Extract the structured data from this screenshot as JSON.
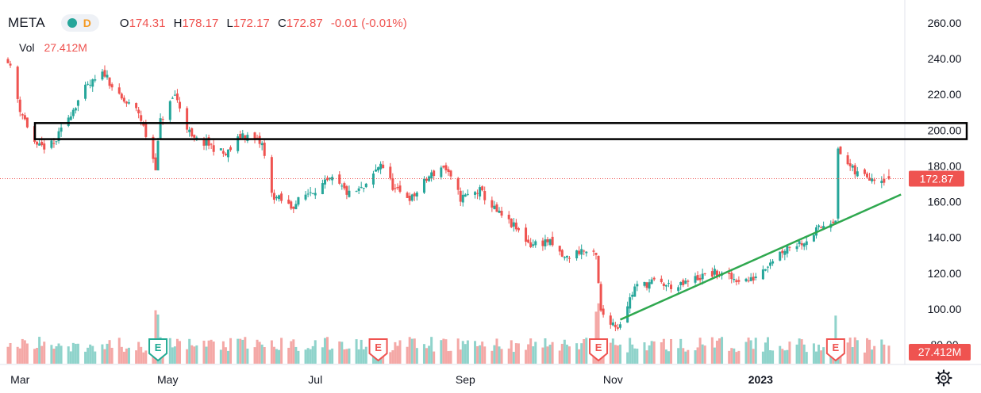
{
  "header": {
    "symbol": "META",
    "interval": "D",
    "open_label": "O",
    "open": "174.31",
    "high_label": "H",
    "high": "178.17",
    "low_label": "L",
    "low": "172.17",
    "close_label": "C",
    "close": "172.87",
    "change": "-0.01 (-0.01%)"
  },
  "volume": {
    "label": "Vol",
    "value": "27.412M"
  },
  "price_tag": "172.87",
  "volume_tag": "27.412M",
  "colors": {
    "up": "#26a69a",
    "down": "#ef5350",
    "trendline": "#2fa84f",
    "zone": "#000000",
    "text": "#131722"
  },
  "icons": {
    "settings": "gear-icon"
  },
  "chart_data": {
    "type": "candlestick",
    "symbol": "META",
    "x_tick_labels": [
      "Mar",
      "May",
      "Jul",
      "Sep",
      "Nov",
      "2023"
    ],
    "y_tick_labels": [
      "260.00",
      "240.00",
      "220.00",
      "200.00",
      "180.00",
      "160.00",
      "140.00",
      "120.00",
      "100.00",
      "80.00"
    ],
    "ylim": [
      76,
      264
    ],
    "last_price": 172.87,
    "price_series_approx": [
      [
        "2022-02-24",
        240
      ],
      [
        "2022-03-01",
        212
      ],
      [
        "2022-03-08",
        190
      ],
      [
        "2022-03-15",
        192
      ],
      [
        "2022-03-22",
        210
      ],
      [
        "2022-03-28",
        223
      ],
      [
        "2022-04-05",
        232
      ],
      [
        "2022-04-11",
        218
      ],
      [
        "2022-04-19",
        210
      ],
      [
        "2022-04-26",
        180
      ],
      [
        "2022-04-28",
        205
      ],
      [
        "2022-05-04",
        220
      ],
      [
        "2022-05-11",
        195
      ],
      [
        "2022-05-18",
        192
      ],
      [
        "2022-05-25",
        186
      ],
      [
        "2022-06-01",
        198
      ],
      [
        "2022-06-09",
        192
      ],
      [
        "2022-06-13",
        164
      ],
      [
        "2022-06-21",
        157
      ],
      [
        "2022-06-29",
        166
      ],
      [
        "2022-07-08",
        172
      ],
      [
        "2022-07-15",
        164
      ],
      [
        "2022-07-22",
        168
      ],
      [
        "2022-07-28",
        182
      ],
      [
        "2022-08-03",
        166
      ],
      [
        "2022-08-10",
        162
      ],
      [
        "2022-08-17",
        174
      ],
      [
        "2022-08-23",
        180
      ],
      [
        "2022-08-30",
        162
      ],
      [
        "2022-09-07",
        166
      ],
      [
        "2022-09-14",
        154
      ],
      [
        "2022-09-21",
        146
      ],
      [
        "2022-09-28",
        136
      ],
      [
        "2022-10-05",
        138
      ],
      [
        "2022-10-12",
        128
      ],
      [
        "2022-10-19",
        133
      ],
      [
        "2022-10-25",
        129
      ],
      [
        "2022-10-27",
        98
      ],
      [
        "2022-11-03",
        90
      ],
      [
        "2022-11-10",
        112
      ],
      [
        "2022-11-17",
        115
      ],
      [
        "2022-11-28",
        112
      ],
      [
        "2022-12-05",
        117
      ],
      [
        "2022-12-13",
        120
      ],
      [
        "2022-12-20",
        117
      ],
      [
        "2022-12-28",
        116
      ],
      [
        "2023-01-05",
        127
      ],
      [
        "2023-01-12",
        135
      ],
      [
        "2023-01-19",
        138
      ],
      [
        "2023-01-27",
        147
      ],
      [
        "2023-02-01",
        151
      ],
      [
        "2023-02-02",
        188
      ],
      [
        "2023-02-09",
        176
      ],
      [
        "2023-02-16",
        174
      ],
      [
        "2023-02-22",
        172.87
      ]
    ],
    "zone_box_price_range": [
      195,
      204
    ],
    "trendline": {
      "start": [
        "2022-11-04",
        94
      ],
      "end": [
        "2023-02-28",
        164
      ]
    },
    "earnings_markers": [
      {
        "date": "2022-04-27",
        "label": "E",
        "style": "beat"
      },
      {
        "date": "2022-07-27",
        "label": "E",
        "style": "miss"
      },
      {
        "date": "2022-10-26",
        "label": "E",
        "style": "miss"
      },
      {
        "date": "2023-02-01",
        "label": "E",
        "style": "miss"
      }
    ],
    "volume_last": "27.412M",
    "grid": false,
    "legend": "top-left"
  }
}
